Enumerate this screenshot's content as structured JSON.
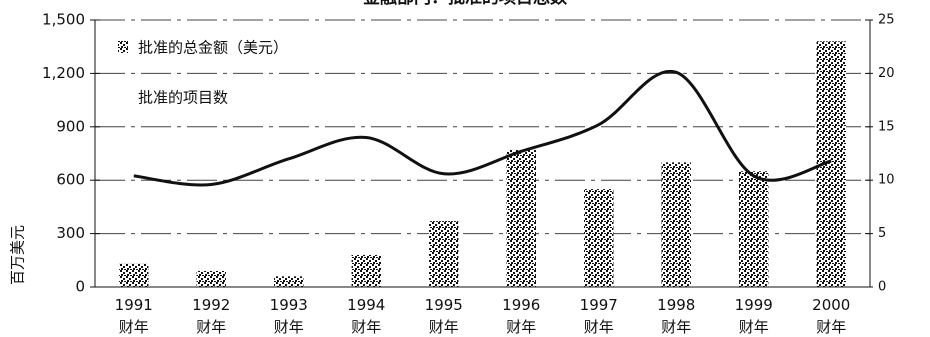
{
  "chart_data": {
    "type": "bar-line",
    "title": "金融部门：批准的项目总数",
    "y_label": "百万美元",
    "categories": [
      "1991 财年",
      "1992 财年",
      "1993 财年",
      "1994 财年",
      "1995 财年",
      "1996 财年",
      "1997 财年",
      "1998 财年",
      "1999 财年",
      "2000 财年"
    ],
    "series": [
      {
        "name": "批准的总金额（美元）",
        "color": "#111111",
        "values": [
          130,
          90,
          60,
          180,
          370,
          770,
          550,
          700,
          650,
          1380
        ]
      },
      {
        "name": "批准的项目数",
        "color": "#111111",
        "axis": "y2",
        "values": [
          10.4,
          9.6,
          12,
          14,
          10.6,
          12.7,
          15.2,
          20.1,
          10.4,
          11.8
        ]
      }
    ],
    "ylim": [
      0,
      1500
    ],
    "yticks": [
      0,
      300,
      600,
      900,
      {
        "value": 1200,
        "label": "1,200"
      },
      {
        "value": 1500,
        "label": "1,500"
      }
    ],
    "y2lim": [
      0,
      25
    ],
    "y2ticks": [
      0,
      5,
      10,
      15,
      20,
      25
    ],
    "grid": true
  }
}
